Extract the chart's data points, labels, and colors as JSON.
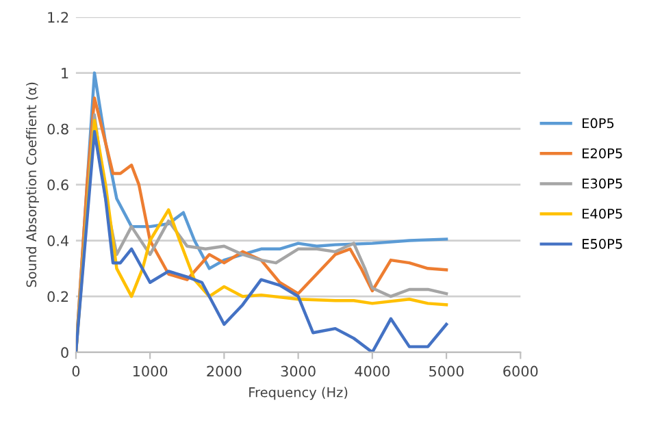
{
  "chart_data": {
    "type": "line",
    "xlabel": "Frequency (Hz)",
    "ylabel": "Sound Absorption Coeffient (α)",
    "xlim": [
      0,
      6000
    ],
    "xticks": [
      0,
      1000,
      2000,
      3000,
      4000,
      5000,
      6000
    ],
    "ylim": [
      0,
      1.2
    ],
    "yticks": [
      0,
      0.2,
      0.4,
      0.6,
      0.8,
      1,
      1.2
    ],
    "grid": "y",
    "legend": "right",
    "marker": "none",
    "line_style": "solid",
    "series": [
      {
        "name": "E0P5",
        "color": "#5b9bd5",
        "x": [
          0,
          250,
          400,
          550,
          750,
          1000,
          1250,
          1450,
          1600,
          1800,
          2000,
          2250,
          2500,
          2750,
          3000,
          3250,
          3500,
          4000,
          4500,
          5000
        ],
        "values": [
          0,
          1.0,
          0.75,
          0.55,
          0.45,
          0.45,
          0.46,
          0.5,
          0.4,
          0.3,
          0.33,
          0.35,
          0.37,
          0.37,
          0.39,
          0.38,
          0.385,
          0.39,
          0.4,
          0.405
        ]
      },
      {
        "name": "E20P5",
        "color": "#ed7d31",
        "x": [
          0,
          150,
          250,
          400,
          500,
          600,
          750,
          850,
          1000,
          1250,
          1500,
          1800,
          2000,
          2250,
          2500,
          2750,
          3000,
          3250,
          3500,
          3700,
          3850,
          4000,
          4250,
          4500,
          4750,
          5000
        ],
        "values": [
          0,
          0.6,
          0.91,
          0.75,
          0.64,
          0.64,
          0.67,
          0.6,
          0.4,
          0.28,
          0.26,
          0.35,
          0.32,
          0.36,
          0.33,
          0.25,
          0.21,
          0.28,
          0.35,
          0.37,
          0.3,
          0.22,
          0.33,
          0.32,
          0.3,
          0.295
        ]
      },
      {
        "name": "E30P5",
        "color": "#a5a5a5",
        "x": [
          0,
          250,
          400,
          550,
          750,
          1000,
          1250,
          1500,
          1750,
          2000,
          2250,
          2500,
          2700,
          3000,
          3250,
          3500,
          3750,
          3900,
          4000,
          4250,
          4500,
          4750,
          5000
        ],
        "values": [
          0,
          0.85,
          0.55,
          0.35,
          0.45,
          0.35,
          0.47,
          0.38,
          0.37,
          0.38,
          0.35,
          0.33,
          0.32,
          0.37,
          0.37,
          0.36,
          0.39,
          0.3,
          0.23,
          0.2,
          0.225,
          0.225,
          0.21
        ]
      },
      {
        "name": "E40P5",
        "color": "#ffc000",
        "x": [
          0,
          250,
          400,
          550,
          750,
          900,
          1000,
          1250,
          1400,
          1600,
          1800,
          2000,
          2250,
          2500,
          3000,
          3500,
          3750,
          4000,
          4500,
          4750,
          5000
        ],
        "values": [
          0,
          0.83,
          0.6,
          0.3,
          0.2,
          0.3,
          0.4,
          0.51,
          0.4,
          0.26,
          0.2,
          0.235,
          0.2,
          0.205,
          0.19,
          0.185,
          0.185,
          0.175,
          0.19,
          0.175,
          0.17
        ]
      },
      {
        "name": "E50P5",
        "color": "#4472c4",
        "x": [
          0,
          250,
          400,
          500,
          600,
          750,
          1000,
          1250,
          1500,
          1700,
          2000,
          2250,
          2500,
          2750,
          3000,
          3200,
          3500,
          3750,
          4000,
          4250,
          4500,
          4750,
          5000
        ],
        "values": [
          0,
          0.79,
          0.55,
          0.32,
          0.32,
          0.37,
          0.25,
          0.29,
          0.27,
          0.25,
          0.1,
          0.17,
          0.26,
          0.24,
          0.2,
          0.07,
          0.085,
          0.05,
          0.0,
          0.12,
          0.02,
          0.02,
          0.1
        ]
      }
    ]
  }
}
